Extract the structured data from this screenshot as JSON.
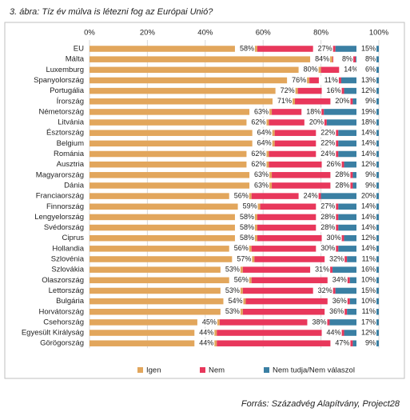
{
  "chart_data": {
    "type": "stacked-bar-horizontal",
    "title": "3.  ábra: Tíz év múlva is létezni fog az Európai Unió?",
    "source": "Forrás: Századvég Alapítvány, Project28",
    "categories": [
      "EU",
      "Málta",
      "Luxemburg",
      "Spanyolország",
      "Portugália",
      "Írország",
      "Németország",
      "Litvánia",
      "Észtország",
      "Belgium",
      "Románia",
      "Ausztria",
      "Magyarország",
      "Dánia",
      "Franciaország",
      "Finnország",
      "Lengyelország",
      "Svédország",
      "Ciprus",
      "Hollandia",
      "Szlovénia",
      "Szlovákia",
      "Olaszország",
      "Lettország",
      "Bulgária",
      "Horvátország",
      "Csehország",
      "Egyesült Királyság",
      "Görögország"
    ],
    "series": [
      {
        "name": "Igen",
        "color": "#e2a65c",
        "values": [
          58,
          84,
          80,
          76,
          72,
          71,
          63,
          62,
          64,
          64,
          62,
          62,
          63,
          63,
          56,
          59,
          58,
          58,
          58,
          56,
          57,
          53,
          56,
          53,
          54,
          53,
          45,
          44,
          44
        ],
        "value_labels": [
          "58%",
          "84%",
          "80%",
          "76%",
          "72%",
          "71%",
          "63%",
          "62%",
          "64%",
          "64%",
          "62%",
          "62%",
          "63%",
          "63%",
          "56%",
          "59%",
          "58%",
          "58%",
          "58%",
          "56%",
          "57%",
          "53%",
          "56%",
          "53%",
          "54%",
          "53%",
          "45%",
          "44%",
          "44%"
        ]
      },
      {
        "name": "Nem",
        "color": "#e8375b",
        "values": [
          27,
          8,
          14,
          11,
          16,
          20,
          18,
          20,
          22,
          22,
          24,
          26,
          28,
          28,
          24,
          27,
          28,
          28,
          30,
          30,
          32,
          31,
          34,
          32,
          36,
          36,
          38,
          44,
          47
        ],
        "value_labels": [
          "27%",
          "8%",
          "14%",
          "11%",
          "16%",
          "20%",
          "18%",
          "20%",
          "22%",
          "22%",
          "24%",
          "26%",
          "28%",
          "28%",
          "24%",
          "27%",
          "28%",
          "28%",
          "30%",
          "30%",
          "32%",
          "31%",
          "34%",
          "32%",
          "36%",
          "36%",
          "38%",
          "44%",
          "47%"
        ]
      },
      {
        "name": "Nem tudja/Nem válaszol",
        "color": "#3a7fa3",
        "values": [
          15,
          8,
          6,
          13,
          12,
          9,
          19,
          18,
          14,
          14,
          14,
          12,
          9,
          9,
          20,
          14,
          14,
          14,
          12,
          14,
          11,
          16,
          10,
          15,
          10,
          11,
          17,
          12,
          9
        ],
        "value_labels": [
          "15%",
          "8%",
          "6%",
          "13%",
          "12%",
          "9%",
          "19%",
          "18%",
          "14%",
          "14%",
          "14%",
          "12%",
          "9%",
          "9%",
          "20%",
          "14%",
          "14%",
          "14%",
          "12%",
          "14%",
          "11%",
          "16%",
          "10%",
          "15%",
          "10%",
          "11%",
          "17%",
          "12%",
          "9%"
        ]
      }
    ],
    "xlim": [
      0,
      100
    ],
    "xticks": [
      {
        "value": 0,
        "label": "0%"
      },
      {
        "value": 20,
        "label": "20%"
      },
      {
        "value": 40,
        "label": "40%"
      },
      {
        "value": 60,
        "label": "60%"
      },
      {
        "value": 80,
        "label": "80%"
      },
      {
        "value": 100,
        "label": "100%"
      }
    ],
    "grid": true
  }
}
